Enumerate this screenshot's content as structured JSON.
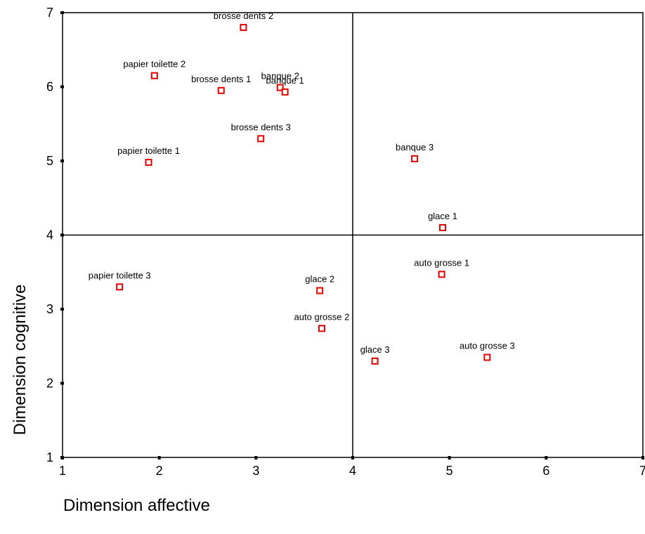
{
  "chart_data": {
    "type": "scatter",
    "title": "",
    "xlabel": "Dimension affective",
    "ylabel": "Dimension cognitive",
    "xlim": [
      1,
      7
    ],
    "ylim": [
      1,
      7
    ],
    "x_ticks": [
      "1",
      "2",
      "3",
      "4",
      "5",
      "6",
      "7"
    ],
    "y_ticks": [
      "1",
      "2",
      "3",
      "4",
      "5",
      "6",
      "7"
    ],
    "reference_lines": {
      "x": 4,
      "y": 4
    },
    "grid": false,
    "marker_color": "#e00000",
    "marker": "hollow-square",
    "points": [
      {
        "label": "brosse dents 2",
        "x": 2.87,
        "y": 6.8
      },
      {
        "label": "papier toilette 2",
        "x": 1.95,
        "y": 6.15
      },
      {
        "label": "brosse dents 1",
        "x": 2.64,
        "y": 5.95
      },
      {
        "label": "banque 2",
        "x": 3.25,
        "y": 5.99
      },
      {
        "label": "banque 1",
        "x": 3.3,
        "y": 5.93
      },
      {
        "label": "brosse dents 3",
        "x": 3.05,
        "y": 5.3
      },
      {
        "label": "papier toilette 1",
        "x": 1.89,
        "y": 4.98
      },
      {
        "label": "banque 3",
        "x": 4.64,
        "y": 5.03
      },
      {
        "label": "glace 1",
        "x": 4.93,
        "y": 4.1
      },
      {
        "label": "papier toilette 3",
        "x": 1.59,
        "y": 3.3
      },
      {
        "label": "auto grosse 1",
        "x": 4.92,
        "y": 3.47
      },
      {
        "label": "glace 2",
        "x": 3.66,
        "y": 3.25
      },
      {
        "label": "auto grosse 2",
        "x": 3.68,
        "y": 2.74
      },
      {
        "label": "glace 3",
        "x": 4.23,
        "y": 2.3
      },
      {
        "label": "auto grosse 3",
        "x": 5.39,
        "y": 2.35
      }
    ]
  }
}
